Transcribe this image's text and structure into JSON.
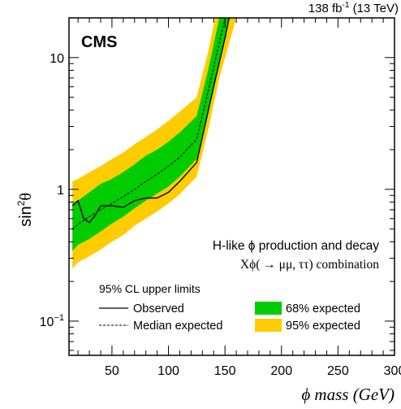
{
  "header": {
    "experiment": "CMS",
    "lumi_value": "138 fb",
    "lumi_exponent": "-1",
    "lumi_energy": " (13 TeV)"
  },
  "annotation": {
    "line1": "H-like ϕ production and decay",
    "line2": "Xϕ( → μμ, ττ) combination"
  },
  "legend": {
    "title": "95% CL upper limits",
    "observed": "Observed",
    "median": "Median expected",
    "band68": "68% expected",
    "band95": "95% expected"
  },
  "chart_data": {
    "type": "line",
    "xlabel": "ϕ mass (GeV)",
    "ylabel": "sin²θ",
    "ylabel_base": "sin",
    "ylabel_sup": "2",
    "ylabel_theta": "θ",
    "xlim": [
      12,
      300
    ],
    "ylim": [
      0.055,
      20
    ],
    "log_y": true,
    "grid": false,
    "legend_position": "bottom",
    "x_ticks": [
      50,
      100,
      150,
      200,
      250,
      300
    ],
    "y_ticks": [
      {
        "value": 0.1,
        "label": "10",
        "sup": "−1"
      },
      {
        "value": 1,
        "label": "1",
        "sup": ""
      },
      {
        "value": 10,
        "label": "10",
        "sup": ""
      }
    ],
    "colors": {
      "observed": "#000000",
      "median": "#000000",
      "band68": "#00cc00",
      "band95": "#ffcc00"
    },
    "observed": {
      "x": [
        15,
        20,
        25,
        30,
        35,
        40,
        50,
        60,
        70,
        80,
        90,
        100,
        110,
        125,
        140,
        150,
        158
      ],
      "y": [
        0.75,
        0.82,
        0.6,
        0.56,
        0.63,
        0.75,
        0.75,
        0.73,
        0.82,
        0.86,
        0.86,
        0.95,
        1.15,
        1.6,
        6.0,
        14,
        30
      ]
    },
    "median": {
      "x": [
        15,
        20,
        25,
        30,
        40,
        50,
        60,
        70,
        80,
        90,
        100,
        110,
        125,
        135,
        145,
        155
      ],
      "y": [
        0.5,
        0.54,
        0.58,
        0.62,
        0.7,
        0.78,
        0.88,
        1.0,
        1.15,
        1.3,
        1.5,
        1.75,
        2.4,
        5.5,
        13,
        30
      ]
    },
    "band68": {
      "x": [
        15,
        20,
        30,
        40,
        50,
        60,
        70,
        80,
        90,
        100,
        110,
        125,
        135,
        145,
        155
      ],
      "low": [
        0.34,
        0.38,
        0.42,
        0.48,
        0.55,
        0.62,
        0.72,
        0.82,
        0.93,
        1.05,
        1.25,
        1.7,
        4.0,
        9.5,
        22
      ],
      "high": [
        0.78,
        0.82,
        0.95,
        1.1,
        1.2,
        1.35,
        1.55,
        1.8,
        2.0,
        2.3,
        2.7,
        3.6,
        8.0,
        20,
        45
      ]
    },
    "band95": {
      "x": [
        15,
        20,
        30,
        40,
        50,
        60,
        70,
        80,
        90,
        100,
        110,
        125,
        135,
        145,
        160
      ],
      "low": [
        0.25,
        0.28,
        0.31,
        0.35,
        0.4,
        0.45,
        0.53,
        0.6,
        0.68,
        0.78,
        0.92,
        1.25,
        2.8,
        7.0,
        20
      ],
      "high": [
        1.15,
        1.2,
        1.35,
        1.5,
        1.7,
        1.9,
        2.2,
        2.5,
        2.85,
        3.3,
        3.9,
        5.0,
        11,
        28,
        60
      ]
    }
  }
}
